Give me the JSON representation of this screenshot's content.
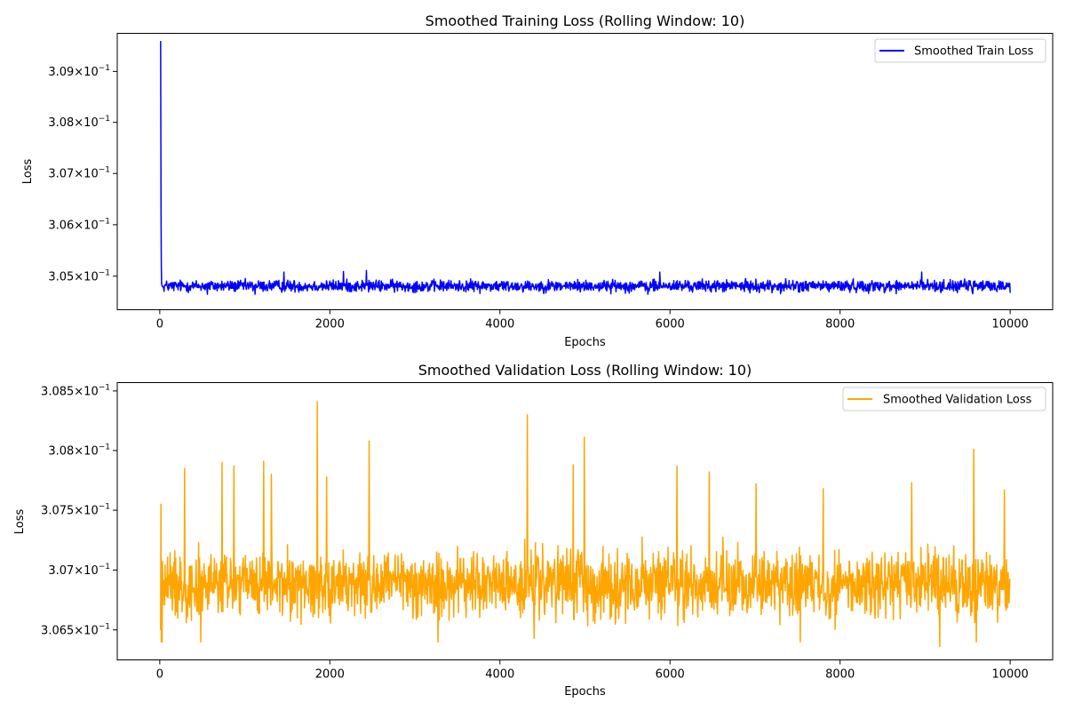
{
  "chart_data": [
    {
      "type": "line",
      "title": "Smoothed Training Loss (Rolling Window: 10)",
      "xlabel": "Epochs",
      "ylabel": "Loss",
      "xlim": [
        -500,
        10500
      ],
      "ylim": [
        0.30435,
        0.30975
      ],
      "yscale": "log",
      "grid": false,
      "legend_position": "top-right",
      "x_ticks": [
        {
          "value": 0,
          "label": "0"
        },
        {
          "value": 2000,
          "label": "2000"
        },
        {
          "value": 4000,
          "label": "4000"
        },
        {
          "value": 6000,
          "label": "6000"
        },
        {
          "value": 8000,
          "label": "8000"
        },
        {
          "value": 10000,
          "label": "10000"
        }
      ],
      "y_ticks": [
        {
          "value": 0.305,
          "mantissa": "3.05",
          "base": "10",
          "exponent": "−1"
        },
        {
          "value": 0.306,
          "mantissa": "3.06",
          "base": "10",
          "exponent": "−1"
        },
        {
          "value": 0.307,
          "mantissa": "3.07",
          "base": "10",
          "exponent": "−1"
        },
        {
          "value": 0.308,
          "mantissa": "3.08",
          "base": "10",
          "exponent": "−1"
        },
        {
          "value": 0.309,
          "mantissa": "3.09",
          "base": "10",
          "exponent": "−1"
        }
      ],
      "series": [
        {
          "name": "Smoothed Train Loss",
          "color": "#0000ff",
          "start": {
            "x": [
              10,
              12,
              15,
              18,
              22,
              30,
              45
            ],
            "y": [
              0.3096,
              0.3082,
              0.3062,
              0.3052,
              0.30485,
              0.3048,
              0.30478
            ]
          },
          "x_range": [
            45,
            10000
          ],
          "mean": 0.30481,
          "spread": 9e-05,
          "peaks": [
            {
              "x": 1460,
              "y": 0.30508
            },
            {
              "x": 2160,
              "y": 0.30509
            },
            {
              "x": 2430,
              "y": 0.30511
            },
            {
              "x": 5880,
              "y": 0.30508
            },
            {
              "x": 8960,
              "y": 0.30508
            }
          ],
          "troughs": [
            {
              "x": 560,
              "y": 0.30465
            },
            {
              "x": 1120,
              "y": 0.30465
            },
            {
              "x": 5740,
              "y": 0.30465
            },
            {
              "x": 7300,
              "y": 0.30466
            },
            {
              "x": 8660,
              "y": 0.30466
            },
            {
              "x": 9560,
              "y": 0.30466
            }
          ]
        }
      ]
    },
    {
      "type": "line",
      "title": "Smoothed Validation Loss (Rolling Window: 10)",
      "xlabel": "Epochs",
      "ylabel": "Loss",
      "xlim": [
        -500,
        10500
      ],
      "ylim": [
        0.30625,
        0.30857
      ],
      "yscale": "log",
      "grid": false,
      "legend_position": "top-right",
      "x_ticks": [
        {
          "value": 0,
          "label": "0"
        },
        {
          "value": 2000,
          "label": "2000"
        },
        {
          "value": 4000,
          "label": "4000"
        },
        {
          "value": 6000,
          "label": "6000"
        },
        {
          "value": 8000,
          "label": "8000"
        },
        {
          "value": 10000,
          "label": "10000"
        }
      ],
      "y_ticks": [
        {
          "value": 0.3065,
          "mantissa": "3.065",
          "base": "10",
          "exponent": "−1"
        },
        {
          "value": 0.307,
          "mantissa": "3.07",
          "base": "10",
          "exponent": "−1"
        },
        {
          "value": 0.3075,
          "mantissa": "3.075",
          "base": "10",
          "exponent": "−1"
        },
        {
          "value": 0.308,
          "mantissa": "3.08",
          "base": "10",
          "exponent": "−1"
        },
        {
          "value": 0.3085,
          "mantissa": "3.085",
          "base": "10",
          "exponent": "−1"
        }
      ],
      "series": [
        {
          "name": "Smoothed Validation Loss",
          "color": "#ffa500",
          "start": {
            "x": [
              10,
              14,
              18,
              22
            ],
            "y": [
              0.3065,
              0.30755,
              0.3064,
              0.3068
            ]
          },
          "x_range": [
            22,
            10000
          ],
          "mean": 0.30688,
          "spread": 0.00022,
          "peaks": [
            {
              "x": 1850,
              "y": 0.30841
            },
            {
              "x": 4320,
              "y": 0.3083
            },
            {
              "x": 4990,
              "y": 0.30811
            },
            {
              "x": 2460,
              "y": 0.30808
            },
            {
              "x": 9570,
              "y": 0.30801
            },
            {
              "x": 1220,
              "y": 0.30791
            },
            {
              "x": 730,
              "y": 0.3079
            },
            {
              "x": 4860,
              "y": 0.30788
            },
            {
              "x": 6080,
              "y": 0.30787
            },
            {
              "x": 870,
              "y": 0.30787
            },
            {
              "x": 290,
              "y": 0.30785
            },
            {
              "x": 6460,
              "y": 0.30782
            },
            {
              "x": 1310,
              "y": 0.3078
            },
            {
              "x": 1960,
              "y": 0.30778
            },
            {
              "x": 7010,
              "y": 0.30772
            },
            {
              "x": 8840,
              "y": 0.30773
            },
            {
              "x": 7800,
              "y": 0.30768
            },
            {
              "x": 9930,
              "y": 0.30767
            }
          ],
          "troughs": [
            {
              "x": 25,
              "y": 0.3064
            },
            {
              "x": 480,
              "y": 0.3064
            },
            {
              "x": 3270,
              "y": 0.3064
            },
            {
              "x": 4400,
              "y": 0.30643
            },
            {
              "x": 7530,
              "y": 0.3064
            },
            {
              "x": 9170,
              "y": 0.30636
            },
            {
              "x": 9600,
              "y": 0.3064
            }
          ]
        }
      ]
    }
  ]
}
